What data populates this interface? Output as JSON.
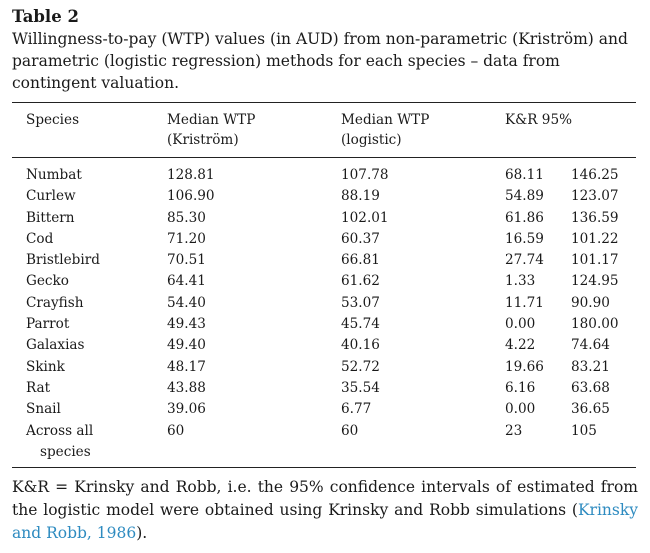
{
  "table_label": "Table 2",
  "caption": "Willingness-to-pay (WTP) values (in AUD) from non-parametric (Kriström) and parametric (logistic regression) methods for each species – data from contingent valuation.",
  "headers": {
    "species": "Species",
    "median_np_line1": "Median WTP",
    "median_np_line2": "(Kriström)",
    "median_log_line1": "Median WTP",
    "median_log_line2": "(logistic)",
    "kr": "K&R 95%"
  },
  "rows": [
    {
      "species": "Numbat",
      "kristrom": "128.81",
      "logistic": "107.78",
      "lo": "68.11",
      "hi": "146.25"
    },
    {
      "species": "Curlew",
      "kristrom": "106.90",
      "logistic": "88.19",
      "lo": "54.89",
      "hi": "123.07"
    },
    {
      "species": "Bittern",
      "kristrom": "85.30",
      "logistic": "102.01",
      "lo": "61.86",
      "hi": "136.59"
    },
    {
      "species": "Cod",
      "kristrom": "71.20",
      "logistic": "60.37",
      "lo": "16.59",
      "hi": "101.22"
    },
    {
      "species": "Bristlebird",
      "kristrom": "70.51",
      "logistic": "66.81",
      "lo": "27.74",
      "hi": "101.17"
    },
    {
      "species": "Gecko",
      "kristrom": "64.41",
      "logistic": "61.62",
      "lo": "1.33",
      "hi": "124.95"
    },
    {
      "species": "Crayfish",
      "kristrom": "54.40",
      "logistic": "53.07",
      "lo": "11.71",
      "hi": "90.90"
    },
    {
      "species": "Parrot",
      "kristrom": "49.43",
      "logistic": "45.74",
      "lo": "0.00",
      "hi": "180.00"
    },
    {
      "species": "Galaxias",
      "kristrom": "49.40",
      "logistic": "40.16",
      "lo": "4.22",
      "hi": "74.64"
    },
    {
      "species": "Skink",
      "kristrom": "48.17",
      "logistic": "52.72",
      "lo": "19.66",
      "hi": "83.21"
    },
    {
      "species": "Rat",
      "kristrom": "43.88",
      "logistic": "35.54",
      "lo": "6.16",
      "hi": "63.68"
    },
    {
      "species": "Snail",
      "kristrom": "39.06",
      "logistic": "6.77",
      "lo": "0.00",
      "hi": "36.65"
    }
  ],
  "total_row": {
    "species_line1": "Across all",
    "species_line2": "species",
    "kristrom": "60",
    "logistic": "60",
    "lo": "23",
    "hi": "105"
  },
  "footnote": {
    "text": "K&R = Krinsky and Robb, i.e. the 95% confidence intervals of estimated from the logistic model were obtained using Krinsky and Robb simulations (",
    "ref": "Krinsky and Robb, 1986",
    "close": ")."
  },
  "colors": {
    "reference_link": "#2e8bc0"
  }
}
